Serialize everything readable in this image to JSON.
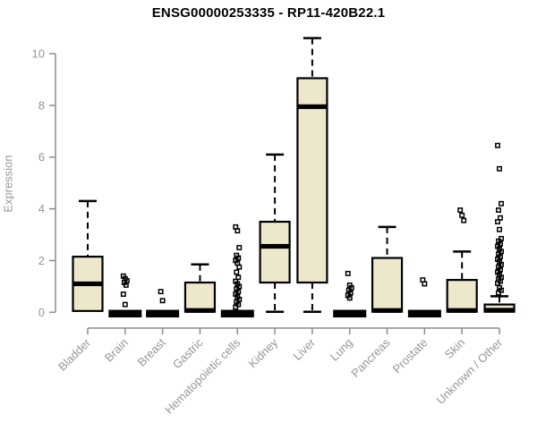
{
  "title": "ENSG00000253335 - RP11-420B22.1",
  "chart_data": {
    "type": "box",
    "title": "ENSG00000253335 - RP11-420B22.1",
    "xlabel": "",
    "ylabel": "Expression",
    "ylim": [
      0,
      10
    ],
    "yticks": [
      0,
      2,
      4,
      6,
      8,
      10
    ],
    "grid": false,
    "legend": false,
    "categories": [
      "Bladder",
      "Brain",
      "Breast",
      "Gastric",
      "Hematopoietic cells",
      "Kidney",
      "Liver",
      "Lung",
      "Pancreas",
      "Prostate",
      "Skin",
      "Unknown / Other"
    ],
    "boxes": [
      {
        "category": "Bladder",
        "whisker_low": 0.05,
        "q1": 0.05,
        "median": 1.1,
        "q3": 2.15,
        "whisker_high": 4.3,
        "outliers": []
      },
      {
        "category": "Brain",
        "whisker_low": 0,
        "q1": 0,
        "median": 0.03,
        "q3": 0.06,
        "whisker_high": 0.06,
        "outliers": [
          1.4,
          1.3,
          1.22,
          1.15,
          1.05,
          0.7,
          0.3
        ]
      },
      {
        "category": "Breast",
        "whisker_low": 0,
        "q1": 0,
        "median": 0.03,
        "q3": 0.06,
        "whisker_high": 0.06,
        "outliers": [
          0.8,
          0.45
        ]
      },
      {
        "category": "Gastric",
        "whisker_low": 0.02,
        "q1": 0.02,
        "median": 0.07,
        "q3": 1.15,
        "whisker_high": 1.85,
        "outliers": []
      },
      {
        "category": "Hematopoietic cells",
        "whisker_low": 0,
        "q1": 0,
        "median": 0.03,
        "q3": 0.06,
        "whisker_high": 0.06,
        "outliers": [
          3.3,
          3.15,
          2.5,
          2.2,
          2.1,
          2.0,
          1.9,
          1.75,
          1.55,
          1.35,
          1.2,
          1.1,
          1.0,
          0.9,
          0.8,
          0.7,
          0.6,
          0.5,
          0.4,
          0.3,
          0.2
        ]
      },
      {
        "category": "Kidney",
        "whisker_low": 0.02,
        "q1": 1.15,
        "median": 2.55,
        "q3": 3.5,
        "whisker_high": 6.1,
        "outliers": []
      },
      {
        "category": "Liver",
        "whisker_low": 0.02,
        "q1": 1.15,
        "median": 7.95,
        "q3": 9.05,
        "whisker_high": 10.6,
        "outliers": []
      },
      {
        "category": "Lung",
        "whisker_low": 0,
        "q1": 0,
        "median": 0.03,
        "q3": 0.06,
        "whisker_high": 0.06,
        "outliers": [
          1.5,
          1.05,
          0.95,
          0.85,
          0.75,
          0.65,
          0.55
        ]
      },
      {
        "category": "Pancreas",
        "whisker_low": 0.02,
        "q1": 0.02,
        "median": 0.07,
        "q3": 2.1,
        "whisker_high": 3.3,
        "outliers": []
      },
      {
        "category": "Prostate",
        "whisker_low": 0,
        "q1": 0,
        "median": 0.03,
        "q3": 0.06,
        "whisker_high": 0.06,
        "outliers": [
          1.25,
          1.1
        ]
      },
      {
        "category": "Skin",
        "whisker_low": 0.02,
        "q1": 0.02,
        "median": 0.07,
        "q3": 1.25,
        "whisker_high": 2.35,
        "outliers": [
          3.95,
          3.75,
          3.55
        ]
      },
      {
        "category": "Unknown / Other",
        "whisker_low": 0.02,
        "q1": 0.02,
        "median": 0.08,
        "q3": 0.3,
        "whisker_high": 0.62,
        "outliers": [
          6.45,
          5.55,
          4.2,
          3.95,
          3.65,
          3.5,
          3.2,
          2.85,
          2.75,
          2.65,
          2.55,
          2.45,
          2.35,
          2.25,
          2.15,
          2.05,
          1.95,
          1.85,
          1.75,
          1.65,
          1.55,
          1.45,
          1.35,
          1.28,
          1.2,
          1.12,
          0.95,
          0.85,
          0.75
        ]
      }
    ],
    "colors": {
      "box_fill": "#EDE8CC",
      "box_stroke": "#000000",
      "median": "#000000",
      "axis": "#8C8C8C",
      "tick_label": "#969696",
      "title": "#000000"
    }
  }
}
